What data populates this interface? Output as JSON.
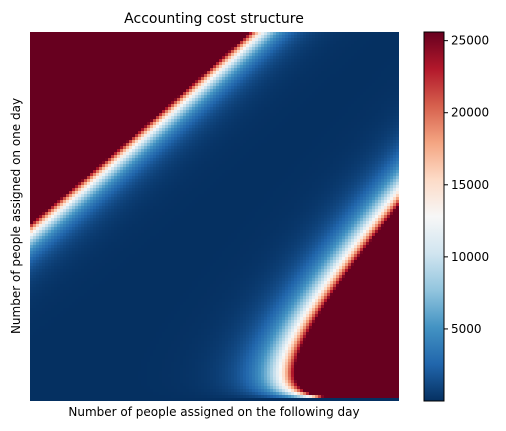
{
  "chart_data": {
    "type": "heatmap",
    "title": "Accounting cost structure",
    "xlabel": "Number of people assigned on the following day",
    "ylabel": "Number of people assigned on one day",
    "colormap": "RdBu_r",
    "colorbar": {
      "min": 0,
      "max": 25600,
      "ticks": [
        {
          "value": 5000,
          "label": "5000"
        },
        {
          "value": 10000,
          "label": "10000"
        },
        {
          "value": 15000,
          "label": "15000"
        },
        {
          "value": 20000,
          "label": "20000"
        },
        {
          "value": 25000,
          "label": "25000"
        }
      ]
    },
    "x_ticks_shown": false,
    "y_ticks_shown": false,
    "grid": false,
    "legend": "colorbar-right",
    "colors": {
      "low": "#053061",
      "mid": "#f7f7f7",
      "high": "#67001f"
    }
  }
}
